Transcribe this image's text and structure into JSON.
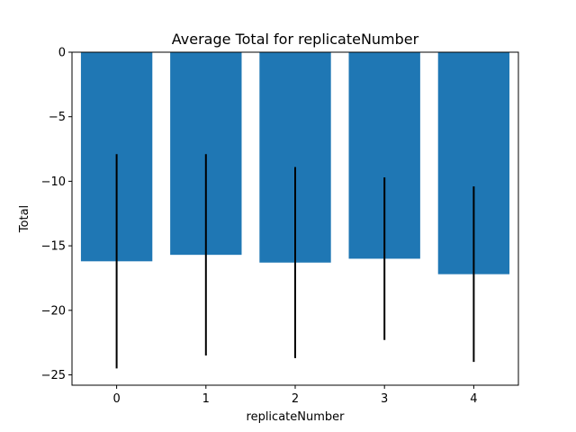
{
  "chart_data": {
    "type": "bar",
    "title": "Average Total for replicateNumber",
    "xlabel": "replicateNumber",
    "ylabel": "Total",
    "categories": [
      "0",
      "1",
      "2",
      "3",
      "4"
    ],
    "values": [
      -16.2,
      -15.7,
      -16.3,
      -16.0,
      -17.2
    ],
    "error_bars": [
      {
        "low": -24.5,
        "high": -7.9
      },
      {
        "low": -23.5,
        "high": -7.9
      },
      {
        "low": -23.7,
        "high": -8.9
      },
      {
        "low": -22.3,
        "high": -9.7
      },
      {
        "low": -24.0,
        "high": -10.4
      }
    ],
    "ylim": [
      -25.8,
      0
    ],
    "yticks": [
      0,
      -5,
      -10,
      -15,
      -20,
      -25
    ],
    "ytick_labels": [
      "0",
      "−5",
      "−10",
      "−15",
      "−20",
      "−25"
    ],
    "xlim": [
      -0.5,
      4.5
    ],
    "grid": false,
    "colors": {
      "bar": "#1f77b4",
      "error_bar": "#000000",
      "axes": "#000000"
    }
  }
}
